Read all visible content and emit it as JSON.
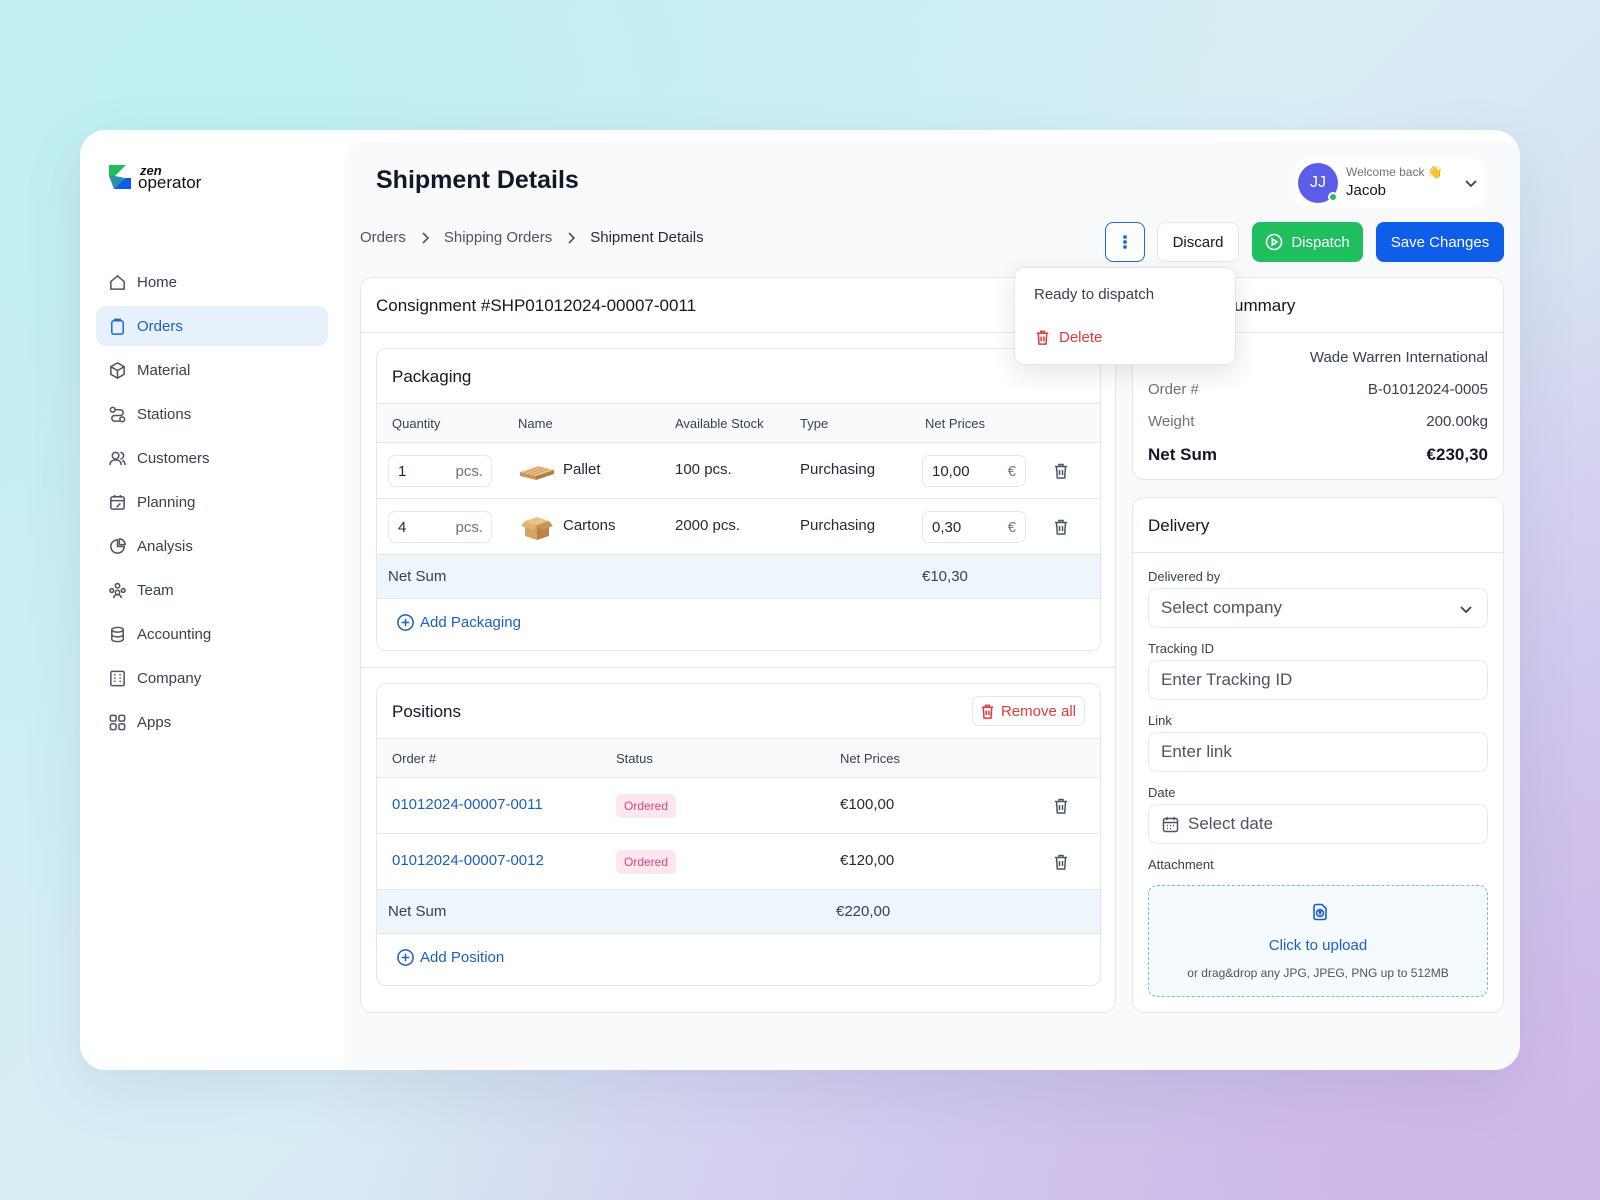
{
  "brand": {
    "zen": "zen",
    "name": "operator"
  },
  "nav": [
    {
      "label": "Home",
      "icon": "home-icon"
    },
    {
      "label": "Orders",
      "icon": "clipboard-icon",
      "active": true
    },
    {
      "label": "Material",
      "icon": "box-icon"
    },
    {
      "label": "Stations",
      "icon": "route-icon"
    },
    {
      "label": "Customers",
      "icon": "users-icon"
    },
    {
      "label": "Planning",
      "icon": "calendar-edit-icon"
    },
    {
      "label": "Analysis",
      "icon": "pie-chart-icon"
    },
    {
      "label": "Team",
      "icon": "team-icon"
    },
    {
      "label": "Accounting",
      "icon": "database-icon"
    },
    {
      "label": "Company",
      "icon": "building-icon"
    },
    {
      "label": "Apps",
      "icon": "grid-icon"
    }
  ],
  "header": {
    "title": "Shipment Details",
    "user": {
      "initials": "JJ",
      "welcome": "Welcome back 👋",
      "name": "Jacob"
    }
  },
  "breadcrumb": [
    "Orders",
    "Shipping Orders",
    "Shipment Details"
  ],
  "actions": {
    "discard": "Discard",
    "dispatch": "Dispatch",
    "save": "Save Changes"
  },
  "menu": {
    "ready": "Ready to dispatch",
    "delete": "Delete"
  },
  "consignment": {
    "title": "Consignment #SHP01012024-00007-0011"
  },
  "packaging": {
    "title": "Packaging",
    "columns": [
      "Quantity",
      "Name",
      "Available Stock",
      "Type",
      "Net Prices"
    ],
    "rows": [
      {
        "qty": "1",
        "unit": "pcs.",
        "name": "Pallet",
        "stock": "100 pcs.",
        "type": "Purchasing",
        "price": "10,00",
        "currency": "€"
      },
      {
        "qty": "4",
        "unit": "pcs.",
        "name": "Cartons",
        "stock": "2000 pcs.",
        "type": "Purchasing",
        "price": "0,30",
        "currency": "€"
      }
    ],
    "net_sum_label": "Net Sum",
    "net_sum": "€10,30",
    "add_label": "Add Packaging"
  },
  "positions": {
    "title": "Positions",
    "remove_all": "Remove all",
    "columns": [
      "Order #",
      "Status",
      "Net Prices"
    ],
    "rows": [
      {
        "order": "01012024-00007-0011",
        "status": "Ordered",
        "price": "€100,00"
      },
      {
        "order": "01012024-00007-0012",
        "status": "Ordered",
        "price": "€120,00"
      }
    ],
    "net_sum_label": "Net Sum",
    "net_sum": "€220,00",
    "add_label": "Add Position"
  },
  "summary": {
    "title": "ummary",
    "company": "Wade Warren International",
    "order_label": "Order #",
    "order": "B-01012024-0005",
    "weight_label": "Weight",
    "weight": "200.00kg",
    "net_label": "Net Sum",
    "net": "€230,30"
  },
  "delivery": {
    "title": "Delivery",
    "delivered_by_label": "Delivered by",
    "delivered_by": "Select company",
    "tracking_label": "Tracking ID",
    "tracking_placeholder": "Enter Tracking ID",
    "link_label": "Link",
    "link_placeholder": "Enter link",
    "date_label": "Date",
    "date_placeholder": "Select date",
    "attachment_label": "Attachment",
    "upload_main": "Click to upload",
    "upload_sub": "or drag&drop any JPG, JPEG, PNG up to 512MB"
  },
  "colors": {
    "accent": "#0f5eea",
    "success": "#1fbf5f",
    "danger": "#dc3c3c",
    "link": "#1d5fbf"
  }
}
